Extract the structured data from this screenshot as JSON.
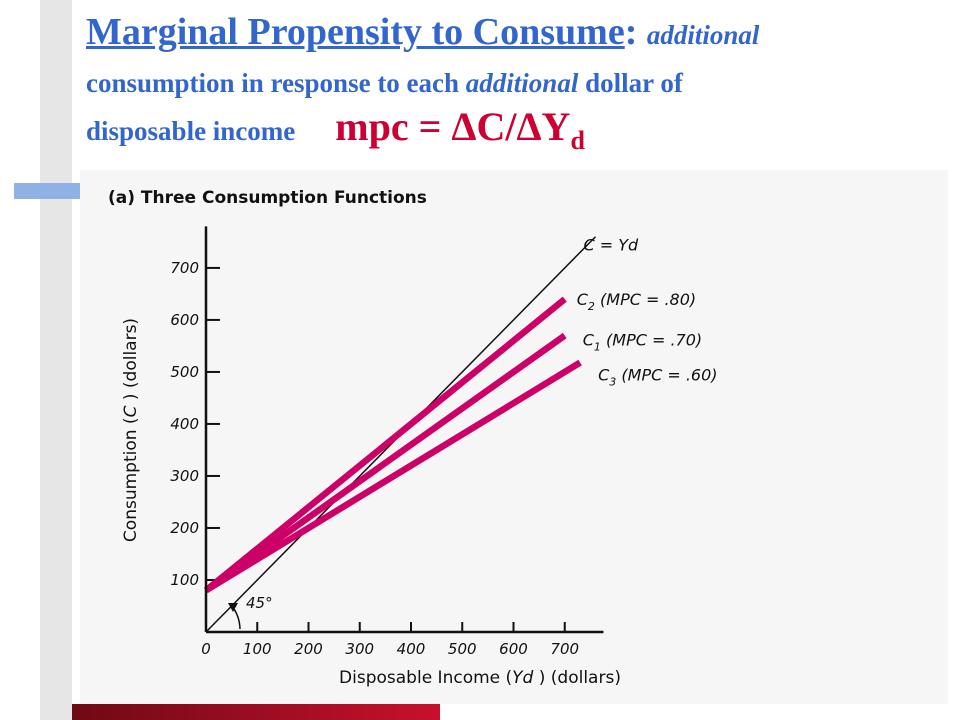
{
  "slide": {
    "title_term": "Marginal Propensity to Consume",
    "title_colon": ": ",
    "def_part1": "additional",
    "def_part2": "consumption in response to each ",
    "def_part3": "additional",
    "def_part4": " dollar of",
    "def_part5": "disposable income",
    "formula_main": "mpc = ΔC/ΔY",
    "formula_sub": "d",
    "colors": {
      "title": "#3366cc",
      "formula": "#cc0033",
      "series": "#cc0066",
      "accent_block": "#8fb1e3",
      "bottom_bar": "#b0102a"
    }
  },
  "chart_data": {
    "type": "line",
    "title": "(a) Three Consumption Functions",
    "xlabel_parts": [
      "Disposable Income (",
      "Yd",
      " ) (dollars)"
    ],
    "ylabel_parts": [
      "Consumption (",
      "C",
      " ) (dollars)"
    ],
    "xlim": [
      0,
      760
    ],
    "ylim": [
      0,
      780
    ],
    "x_ticks": [
      0,
      100,
      200,
      300,
      400,
      500,
      600,
      700
    ],
    "y_ticks": [
      100,
      200,
      300,
      400,
      500,
      600,
      700
    ],
    "angle_label": "45°",
    "series": [
      {
        "name": "C = Yd",
        "label_parts": [
          "C",
          "",
          " = ",
          "Yd",
          ""
        ],
        "x": [
          0,
          760
        ],
        "y": [
          0,
          760
        ],
        "style": "thin"
      },
      {
        "name": "C2 (MPC = .80)",
        "label_parts": [
          "C",
          "2",
          " ",
          "(MPC = .80)",
          ""
        ],
        "x": [
          0,
          700
        ],
        "y": [
          80,
          640
        ],
        "style": "thick"
      },
      {
        "name": "C1 (MPC = .70)",
        "label_parts": [
          "C",
          "1",
          "  ",
          "(MPC = .70)",
          ""
        ],
        "x": [
          0,
          700
        ],
        "y": [
          80,
          570
        ],
        "style": "thick"
      },
      {
        "name": "C3 (MPC = .60)",
        "label_parts": [
          "C",
          "3",
          "  ",
          "(MPC = .60)",
          ""
        ],
        "x": [
          0,
          730
        ],
        "y": [
          80,
          518
        ],
        "style": "thick"
      }
    ]
  }
}
